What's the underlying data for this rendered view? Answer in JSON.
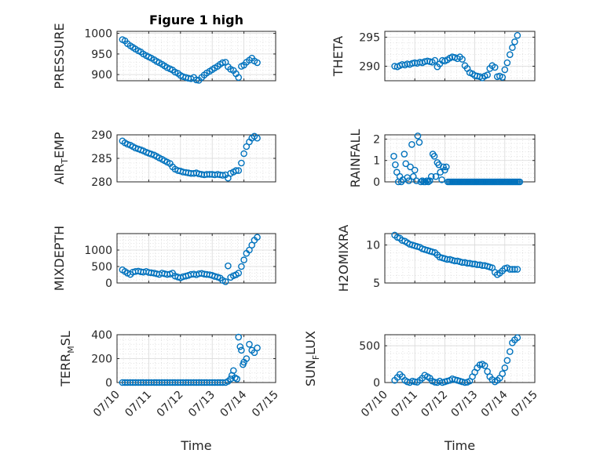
{
  "figure": {
    "title": "Figure 1 high",
    "marker_color": "#0072bd",
    "xlabel": "Time",
    "xticks": [
      "07/10",
      "07/11",
      "07/12",
      "07/13",
      "07/14",
      "07/15"
    ]
  },
  "chart_data": [
    {
      "type": "scatter",
      "ylabel": "PRESSURE",
      "ylim": [
        885,
        1005
      ],
      "yticks": [
        900,
        950,
        1000
      ],
      "xlim": [
        0,
        5
      ],
      "grid": true,
      "series": [
        {
          "x": [
            0.17,
            0.25,
            0.33,
            0.42,
            0.5,
            0.58,
            0.67,
            0.75,
            0.83,
            0.92,
            1.0,
            1.08,
            1.17,
            1.25,
            1.33,
            1.42,
            1.5,
            1.58,
            1.67,
            1.75,
            1.83,
            1.92,
            2.0,
            2.08,
            2.17,
            2.25,
            2.33,
            2.42,
            2.5,
            2.58,
            2.67,
            2.75,
            2.83,
            2.92,
            3.0,
            3.08,
            3.17,
            3.25,
            3.33,
            3.42,
            3.5,
            3.58,
            3.67,
            3.75,
            3.83,
            3.92,
            4.0,
            4.08,
            4.17,
            4.25,
            4.33,
            4.42
          ],
          "y": [
            985,
            982,
            975,
            970,
            966,
            962,
            958,
            955,
            950,
            946,
            943,
            940,
            936,
            932,
            929,
            925,
            921,
            917,
            914,
            911,
            906,
            903,
            898,
            895,
            893,
            891,
            890,
            893,
            887,
            886,
            893,
            899,
            904,
            908,
            912,
            916,
            920,
            925,
            929,
            930,
            919,
            913,
            910,
            902,
            893,
            920,
            923,
            930,
            935,
            940,
            933,
            929
          ]
        }
      ]
    },
    {
      "type": "scatter",
      "ylabel": "THETA",
      "ylim": [
        287.5,
        296
      ],
      "yticks": [
        290,
        295
      ],
      "xlim": [
        0,
        5
      ],
      "grid": true,
      "series": [
        {
          "x": [
            0.33,
            0.42,
            0.5,
            0.58,
            0.67,
            0.75,
            0.83,
            0.92,
            1.0,
            1.08,
            1.17,
            1.25,
            1.33,
            1.42,
            1.5,
            1.58,
            1.67,
            1.75,
            1.83,
            1.92,
            2.0,
            2.08,
            2.17,
            2.25,
            2.33,
            2.42,
            2.5,
            2.58,
            2.67,
            2.75,
            2.83,
            2.92,
            3.0,
            3.08,
            3.17,
            3.25,
            3.33,
            3.42,
            3.5,
            3.58,
            3.67,
            3.75,
            3.83,
            3.92,
            4.0,
            4.08,
            4.17,
            4.25,
            4.33,
            4.42
          ],
          "y": [
            290.0,
            289.9,
            290.1,
            290.3,
            290.2,
            290.4,
            290.3,
            290.5,
            290.6,
            290.5,
            290.7,
            290.6,
            290.8,
            290.9,
            290.8,
            290.7,
            291.0,
            289.9,
            290.4,
            291.0,
            290.9,
            291.1,
            291.4,
            291.6,
            291.5,
            291.3,
            291.6,
            291.2,
            290.1,
            289.6,
            288.9,
            288.7,
            288.4,
            288.3,
            288.2,
            288.0,
            288.3,
            288.5,
            289.6,
            290.1,
            289.8,
            288.2,
            288.3,
            288.1,
            289.4,
            290.6,
            292.0,
            293.2,
            294.2,
            295.3
          ]
        }
      ]
    },
    {
      "type": "scatter",
      "ylabel": "AIR_TEMP",
      "ylim": [
        280,
        290
      ],
      "yticks": [
        280,
        285,
        290
      ],
      "xlim": [
        0,
        5
      ],
      "grid": true,
      "series": [
        {
          "x": [
            0.17,
            0.25,
            0.33,
            0.42,
            0.5,
            0.58,
            0.67,
            0.75,
            0.83,
            0.92,
            1.0,
            1.08,
            1.17,
            1.25,
            1.33,
            1.42,
            1.5,
            1.58,
            1.67,
            1.75,
            1.83,
            1.92,
            2.0,
            2.08,
            2.17,
            2.25,
            2.33,
            2.42,
            2.5,
            2.58,
            2.67,
            2.75,
            2.83,
            2.92,
            3.0,
            3.08,
            3.17,
            3.25,
            3.33,
            3.42,
            3.5,
            3.58,
            3.67,
            3.75,
            3.83,
            3.92,
            4.0,
            4.08,
            4.17,
            4.25,
            4.33,
            4.42
          ],
          "y": [
            288.7,
            288.3,
            288.0,
            287.8,
            287.5,
            287.2,
            287.0,
            286.8,
            286.6,
            286.3,
            286.1,
            285.9,
            285.7,
            285.4,
            285.1,
            284.8,
            284.5,
            284.2,
            283.9,
            283.2,
            282.7,
            282.4,
            282.3,
            282.1,
            282.0,
            281.9,
            281.8,
            281.8,
            281.9,
            281.7,
            281.6,
            281.5,
            281.6,
            281.6,
            281.6,
            281.5,
            281.6,
            281.5,
            281.4,
            281.5,
            280.8,
            281.8,
            282.1,
            282.4,
            282.4,
            284.0,
            286.0,
            287.5,
            288.5,
            289.3,
            289.7,
            289.3
          ]
        }
      ]
    },
    {
      "type": "scatter",
      "ylabel": "RAINFALL",
      "ylim": [
        0,
        2.2
      ],
      "yticks": [
        0,
        1,
        2
      ],
      "xlim": [
        0,
        5
      ],
      "grid": true,
      "series": [
        {
          "x": [
            0.3,
            0.35,
            0.4,
            0.45,
            0.5,
            0.55,
            0.6,
            0.65,
            0.7,
            0.75,
            0.8,
            0.85,
            0.9,
            0.95,
            1.0,
            1.05,
            1.1,
            1.15,
            1.2,
            1.25,
            1.3,
            1.35,
            1.4,
            1.45,
            1.5,
            1.55,
            1.6,
            1.65,
            1.7,
            1.75,
            1.8,
            1.85,
            1.9,
            1.95,
            2.0,
            2.05,
            2.1,
            2.15,
            2.2,
            2.25,
            2.3,
            2.35,
            2.4,
            2.45,
            2.5,
            2.55,
            2.6,
            2.65,
            2.7,
            2.75,
            2.8,
            2.85,
            2.9,
            2.95,
            3.0,
            3.05,
            3.1,
            3.15,
            3.2,
            3.25,
            3.3,
            3.35,
            3.4,
            3.45,
            3.5,
            3.55,
            3.6,
            3.65,
            3.7,
            3.75,
            3.8,
            3.85,
            3.9,
            3.95,
            4.0,
            4.05,
            4.1,
            4.15,
            4.2,
            4.25,
            4.3,
            4.35,
            4.4,
            4.45,
            4.5
          ],
          "y": [
            1.2,
            0.8,
            0.45,
            0,
            0.25,
            0,
            0.1,
            1.3,
            0.85,
            0.2,
            0.05,
            0.7,
            1.75,
            0.25,
            0.55,
            0.05,
            2.15,
            1.85,
            0,
            0.05,
            0,
            0,
            0.05,
            0,
            0.05,
            0.25,
            1.3,
            1.2,
            0.25,
            0.9,
            0.8,
            0.45,
            0.1,
            0.7,
            0.55,
            0.7,
            0,
            0,
            0,
            0,
            0,
            0,
            0,
            0,
            0,
            0,
            0,
            0,
            0,
            0,
            0,
            0,
            0,
            0,
            0,
            0,
            0,
            0,
            0,
            0,
            0,
            0,
            0,
            0,
            0,
            0,
            0,
            0,
            0,
            0,
            0,
            0,
            0,
            0,
            0,
            0,
            0,
            0,
            0,
            0,
            0,
            0,
            0,
            0,
            0
          ]
        }
      ]
    },
    {
      "type": "scatter",
      "ylabel": "MIXDEPTH",
      "ylim": [
        0,
        1500
      ],
      "yticks": [
        0,
        500,
        1000
      ],
      "xlim": [
        0,
        5
      ],
      "grid": true,
      "series": [
        {
          "x": [
            0.17,
            0.25,
            0.33,
            0.42,
            0.5,
            0.58,
            0.67,
            0.75,
            0.83,
            0.92,
            1.0,
            1.08,
            1.17,
            1.25,
            1.33,
            1.42,
            1.5,
            1.58,
            1.67,
            1.75,
            1.83,
            1.92,
            2.0,
            2.08,
            2.17,
            2.25,
            2.33,
            2.42,
            2.5,
            2.58,
            2.67,
            2.75,
            2.83,
            2.92,
            3.0,
            3.08,
            3.17,
            3.25,
            3.33,
            3.42,
            3.5,
            3.58,
            3.67,
            3.75,
            3.83,
            3.92,
            4.0,
            4.08,
            4.17,
            4.25,
            4.33,
            4.42
          ],
          "y": [
            400,
            350,
            300,
            260,
            330,
            350,
            360,
            340,
            330,
            350,
            320,
            310,
            300,
            280,
            260,
            300,
            280,
            260,
            270,
            300,
            210,
            180,
            160,
            190,
            210,
            230,
            260,
            270,
            250,
            280,
            290,
            270,
            260,
            250,
            230,
            200,
            180,
            150,
            80,
            40,
            520,
            170,
            220,
            250,
            300,
            500,
            700,
            900,
            1000,
            1150,
            1300,
            1390
          ]
        }
      ]
    },
    {
      "type": "scatter",
      "ylabel": "H2OMIXRA",
      "ylim": [
        5,
        11.5
      ],
      "yticks": [
        5,
        10
      ],
      "xlim": [
        0,
        5
      ],
      "grid": true,
      "series": [
        {
          "x": [
            0.33,
            0.42,
            0.5,
            0.58,
            0.67,
            0.75,
            0.83,
            0.92,
            1.0,
            1.08,
            1.17,
            1.25,
            1.33,
            1.42,
            1.5,
            1.58,
            1.67,
            1.75,
            1.83,
            1.92,
            2.0,
            2.08,
            2.17,
            2.25,
            2.33,
            2.42,
            2.5,
            2.58,
            2.67,
            2.75,
            2.83,
            2.92,
            3.0,
            3.08,
            3.17,
            3.25,
            3.33,
            3.42,
            3.5,
            3.58,
            3.67,
            3.75,
            3.83,
            3.92,
            4.0,
            4.08,
            4.17,
            4.25,
            4.33,
            4.42
          ],
          "y": [
            11.3,
            11.0,
            10.9,
            10.6,
            10.5,
            10.3,
            10.1,
            10.0,
            9.9,
            9.8,
            9.7,
            9.5,
            9.4,
            9.3,
            9.2,
            9.1,
            9.0,
            8.7,
            8.4,
            8.3,
            8.2,
            8.1,
            8.1,
            8.0,
            7.9,
            7.9,
            7.8,
            7.7,
            7.7,
            7.6,
            7.6,
            7.5,
            7.5,
            7.4,
            7.4,
            7.3,
            7.3,
            7.2,
            7.1,
            7.0,
            6.4,
            6.1,
            6.3,
            6.6,
            6.9,
            7.0,
            6.8,
            6.8,
            6.8,
            6.8
          ]
        }
      ]
    },
    {
      "type": "scatter",
      "ylabel": "TERR_MSL",
      "ylim": [
        0,
        400
      ],
      "yticks": [
        0,
        200,
        400
      ],
      "xlim": [
        0,
        5
      ],
      "grid": true,
      "series": [
        {
          "x": [
            0.17,
            0.25,
            0.33,
            0.42,
            0.5,
            0.58,
            0.67,
            0.75,
            0.83,
            0.92,
            1.0,
            1.08,
            1.17,
            1.25,
            1.33,
            1.42,
            1.5,
            1.58,
            1.67,
            1.75,
            1.83,
            1.92,
            2.0,
            2.08,
            2.17,
            2.25,
            2.33,
            2.42,
            2.5,
            2.58,
            2.67,
            2.75,
            2.83,
            2.92,
            3.0,
            3.08,
            3.17,
            3.25,
            3.33,
            3.42,
            3.5,
            3.58,
            3.62,
            3.67,
            3.72,
            3.78,
            3.83,
            3.88,
            3.92,
            3.97,
            4.0,
            4.08,
            4.17,
            4.25,
            4.33,
            4.42
          ],
          "y": [
            0,
            0,
            0,
            0,
            0,
            0,
            0,
            0,
            0,
            0,
            0,
            0,
            0,
            0,
            0,
            0,
            0,
            0,
            0,
            0,
            0,
            0,
            0,
            0,
            0,
            0,
            0,
            0,
            0,
            0,
            0,
            0,
            0,
            0,
            0,
            0,
            0,
            0,
            0,
            0,
            10,
            30,
            60,
            100,
            40,
            30,
            380,
            300,
            270,
            150,
            170,
            200,
            320,
            270,
            250,
            290
          ]
        }
      ]
    },
    {
      "type": "scatter",
      "ylabel": "SUN_FLUX",
      "ylim": [
        0,
        650
      ],
      "yticks": [
        0,
        500
      ],
      "xlim": [
        0,
        5
      ],
      "grid": true,
      "series": [
        {
          "x": [
            0.33,
            0.42,
            0.5,
            0.58,
            0.67,
            0.75,
            0.83,
            0.92,
            1.0,
            1.08,
            1.17,
            1.25,
            1.33,
            1.42,
            1.5,
            1.58,
            1.67,
            1.75,
            1.83,
            1.92,
            2.0,
            2.08,
            2.17,
            2.25,
            2.33,
            2.42,
            2.5,
            2.58,
            2.67,
            2.75,
            2.83,
            2.92,
            3.0,
            3.08,
            3.17,
            3.25,
            3.33,
            3.42,
            3.5,
            3.58,
            3.67,
            3.75,
            3.83,
            3.92,
            4.0,
            4.08,
            4.17,
            4.25,
            4.33,
            4.42
          ],
          "y": [
            30,
            70,
            110,
            80,
            30,
            10,
            0,
            20,
            10,
            5,
            30,
            60,
            100,
            80,
            60,
            20,
            5,
            0,
            20,
            0,
            10,
            20,
            30,
            50,
            40,
            30,
            20,
            10,
            0,
            5,
            20,
            80,
            140,
            200,
            240,
            250,
            230,
            150,
            80,
            40,
            10,
            30,
            60,
            120,
            200,
            300,
            420,
            540,
            580,
            610
          ]
        }
      ]
    }
  ]
}
